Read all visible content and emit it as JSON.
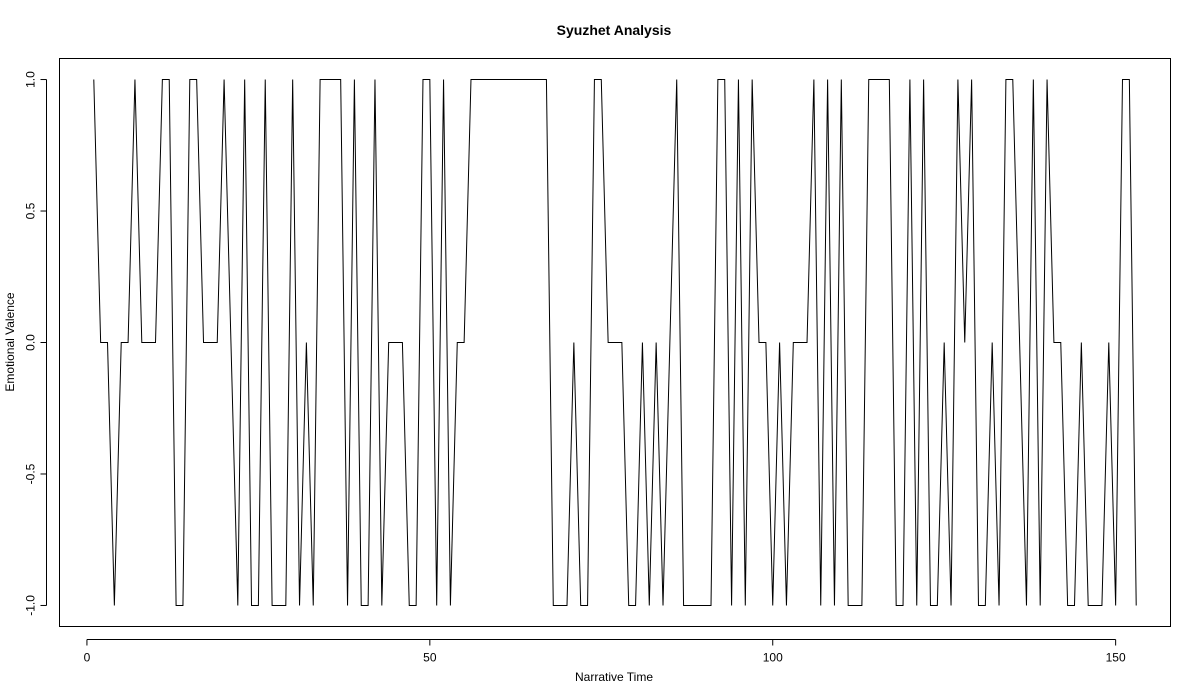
{
  "chart_data": {
    "type": "line",
    "title": "Syuzhet Analysis",
    "xlabel": "Narrative Time",
    "ylabel": "Emotional Valence",
    "xlim": [
      -4,
      158
    ],
    "ylim": [
      -1.08,
      1.08
    ],
    "x_ticks": [
      0,
      50,
      100,
      150
    ],
    "y_ticks": [
      -1.0,
      -0.5,
      0.0,
      0.5,
      1.0
    ],
    "y_tick_labels": [
      "-1.0",
      "-0.5",
      "0.0",
      "0.5",
      "1.0"
    ],
    "grid": false,
    "line_color": "#000000",
    "series": [
      {
        "x": [
          1,
          2,
          3,
          4,
          5,
          6,
          7,
          8,
          9,
          10,
          11,
          12,
          13,
          14,
          15,
          16,
          17,
          18,
          19,
          20,
          21,
          22,
          23,
          24,
          25,
          26,
          27,
          28,
          29,
          30,
          31,
          32,
          33,
          34,
          35,
          36,
          37,
          38,
          39,
          40,
          41,
          42,
          43,
          44,
          45,
          46,
          47,
          48,
          49,
          50,
          51,
          52,
          53,
          54,
          55,
          56,
          57,
          58,
          59,
          60,
          61,
          62,
          63,
          64,
          65,
          66,
          67,
          68,
          69,
          70,
          71,
          72,
          73,
          74,
          75,
          76,
          77,
          78,
          79,
          80,
          81,
          82,
          83,
          84,
          85,
          86,
          87,
          88,
          89,
          90,
          91,
          92,
          93,
          94,
          95,
          96,
          97,
          98,
          99,
          100,
          101,
          102,
          103,
          104,
          105,
          106,
          107,
          108,
          109,
          110,
          111,
          112,
          113,
          114,
          115,
          116,
          117,
          118,
          119,
          120,
          121,
          122,
          123,
          124,
          125,
          126,
          127,
          128,
          129,
          130,
          131,
          132,
          133,
          134,
          135,
          136,
          137,
          138,
          139,
          140,
          141,
          142,
          143,
          144,
          145,
          146,
          147,
          148,
          149,
          150,
          151,
          152,
          153
        ],
        "values": [
          1,
          0,
          0,
          -1,
          0,
          0,
          1,
          0,
          0,
          0,
          1,
          1,
          -1,
          -1,
          1,
          1,
          0,
          0,
          0,
          1,
          0,
          -1,
          1,
          -1,
          -1,
          1,
          -1,
          -1,
          -1,
          1,
          -1,
          0,
          -1,
          1,
          1,
          1,
          1,
          -1,
          1,
          -1,
          -1,
          1,
          -1,
          0,
          0,
          0,
          -1,
          -1,
          1,
          1,
          -1,
          1,
          -1,
          0,
          0,
          1,
          1,
          1,
          1,
          1,
          1,
          1,
          1,
          1,
          1,
          1,
          1,
          -1,
          -1,
          -1,
          0,
          -1,
          -1,
          1,
          1,
          0,
          0,
          0,
          -1,
          -1,
          0,
          -1,
          0,
          -1,
          0,
          1,
          -1,
          -1,
          -1,
          -1,
          -1,
          1,
          1,
          -1,
          1,
          -1,
          1,
          0,
          0,
          -1,
          0,
          -1,
          0,
          0,
          0,
          1,
          -1,
          1,
          -1,
          1,
          -1,
          -1,
          -1,
          1,
          1,
          1,
          1,
          -1,
          -1,
          1,
          -1,
          1,
          -1,
          -1,
          0,
          -1,
          1,
          0,
          1,
          -1,
          -1,
          0,
          -1,
          1,
          1,
          0,
          -1,
          1,
          -1,
          1,
          0,
          0,
          -1,
          -1,
          0,
          -1,
          -1,
          -1,
          0,
          -1,
          1,
          1,
          -1
        ]
      }
    ]
  }
}
